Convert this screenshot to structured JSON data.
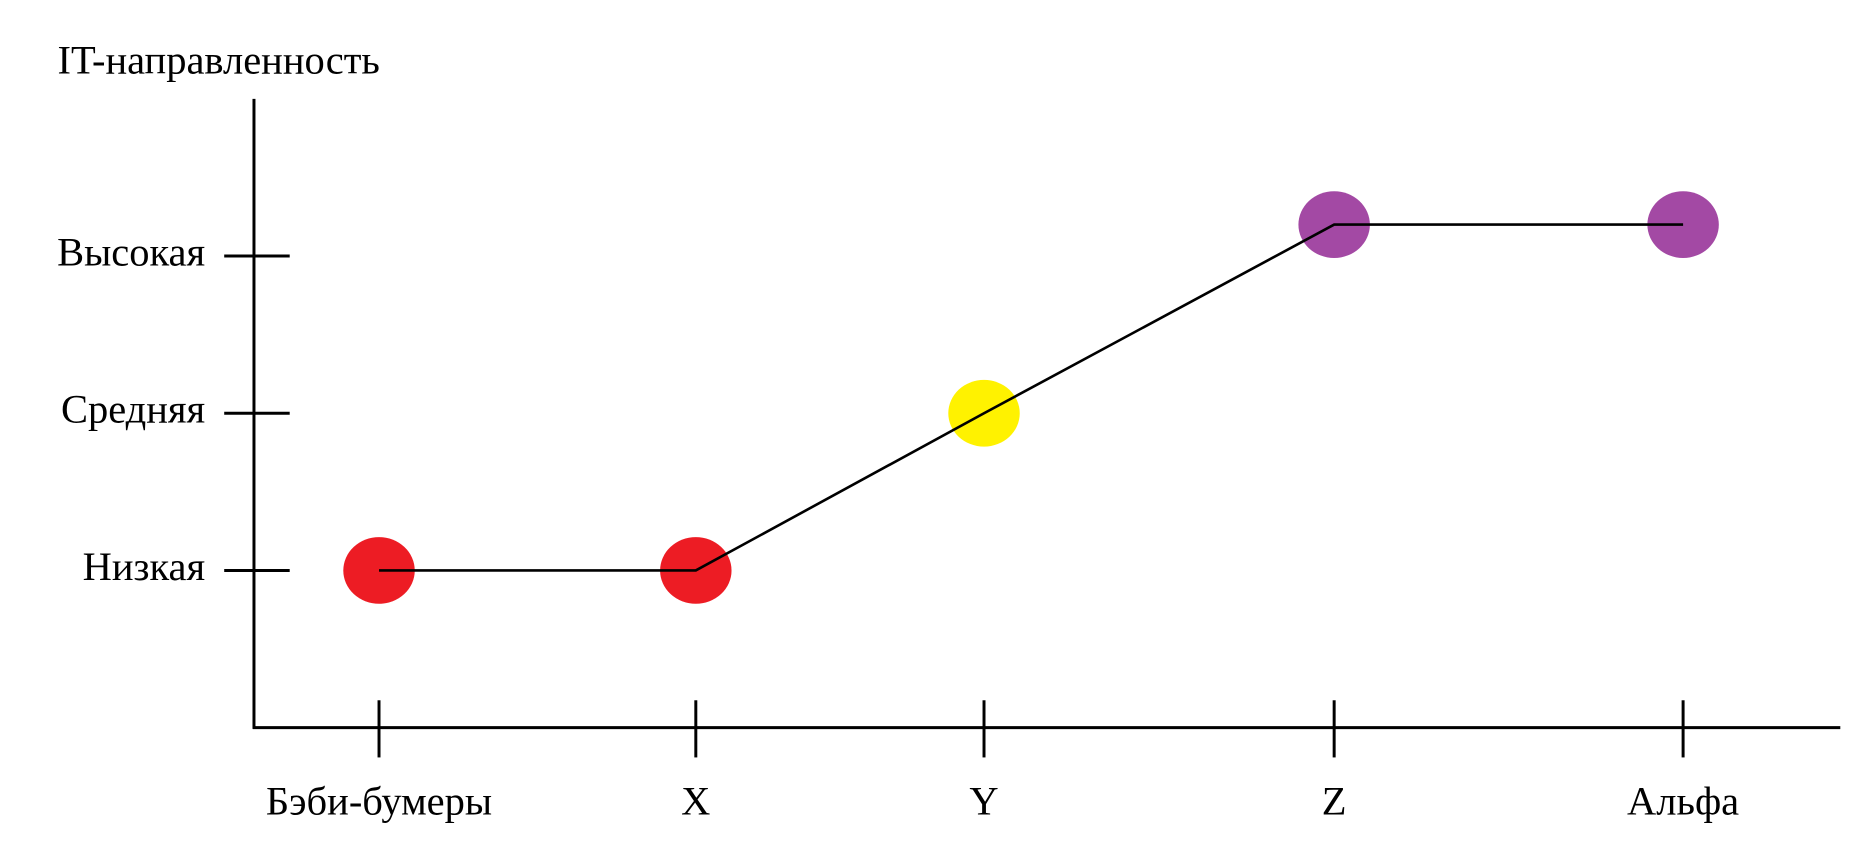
{
  "chart_data": {
    "type": "line",
    "y_axis_label": "IT-направленность",
    "categories": [
      "Бэби-бумеры",
      "X",
      "Y",
      "Z",
      "Альфа"
    ],
    "series": [
      {
        "values": [
          1,
          1,
          2,
          3.2,
          3.2
        ],
        "color": "#000000",
        "point_colors": [
          "#ed1c24",
          "#ed1c24",
          "#fff200",
          "#a349a4",
          "#a349a4"
        ]
      }
    ],
    "ylim": [
      0,
      4
    ],
    "yticks": [
      {
        "value": 1,
        "label": "Низкая"
      },
      {
        "value": 2,
        "label": "Средняя"
      },
      {
        "value": 3,
        "label": "Высокая"
      }
    ]
  }
}
